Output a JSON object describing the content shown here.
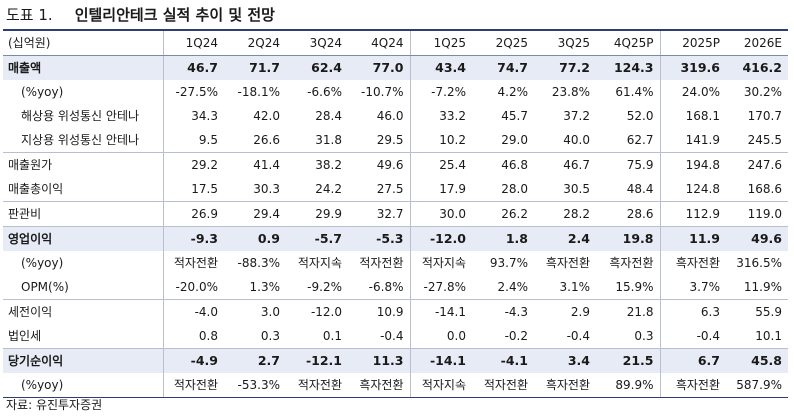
{
  "title": {
    "label": "도표 1.",
    "text": "인텔리안테크 실적 추이 및 전망"
  },
  "table": {
    "unit": "(십억원)",
    "columns": [
      "1Q24",
      "2Q24",
      "3Q24",
      "4Q24",
      "1Q25",
      "2Q25",
      "3Q25",
      "4Q25P",
      "2025P",
      "2026E"
    ],
    "rows": [
      {
        "label": "매출액",
        "style": "bold",
        "values": [
          "46.7",
          "71.7",
          "62.4",
          "77.0",
          "43.4",
          "74.7",
          "77.2",
          "124.3",
          "319.6",
          "416.2"
        ]
      },
      {
        "label": "(%yoy)",
        "style": "indent",
        "values": [
          "-27.5%",
          "-18.1%",
          "-6.6%",
          "-10.7%",
          "-7.2%",
          "4.2%",
          "23.8%",
          "61.4%",
          "24.0%",
          "30.2%"
        ]
      },
      {
        "label": "해상용 위성통신 안테나",
        "style": "indent",
        "values": [
          "34.3",
          "42.0",
          "28.4",
          "46.0",
          "33.2",
          "45.7",
          "37.2",
          "52.0",
          "168.1",
          "170.7"
        ]
      },
      {
        "label": "지상용 위성통신 안테나",
        "style": "indent",
        "values": [
          "9.5",
          "26.6",
          "31.8",
          "29.5",
          "10.2",
          "29.0",
          "40.0",
          "62.7",
          "141.9",
          "245.5"
        ]
      },
      {
        "label": "매출원가",
        "style": "group",
        "values": [
          "29.2",
          "41.4",
          "38.2",
          "49.6",
          "25.4",
          "46.8",
          "46.7",
          "75.9",
          "194.8",
          "247.6"
        ]
      },
      {
        "label": "매출총이익",
        "style": "normal",
        "values": [
          "17.5",
          "30.3",
          "24.2",
          "27.5",
          "17.9",
          "28.0",
          "30.5",
          "48.4",
          "124.8",
          "168.6"
        ]
      },
      {
        "label": "판관비",
        "style": "group",
        "values": [
          "26.9",
          "29.4",
          "29.9",
          "32.7",
          "30.0",
          "26.2",
          "28.2",
          "28.6",
          "112.9",
          "119.0"
        ]
      },
      {
        "label": "영업이익",
        "style": "bold",
        "values": [
          "-9.3",
          "0.9",
          "-5.7",
          "-5.3",
          "-12.0",
          "1.8",
          "2.4",
          "19.8",
          "11.9",
          "49.6"
        ]
      },
      {
        "label": "(%yoy)",
        "style": "indent",
        "values": [
          "적자전환",
          "-88.3%",
          "적자지속",
          "적자전환",
          "적자지속",
          "93.7%",
          "흑자전환",
          "흑자전환",
          "흑자전환",
          "316.5%"
        ]
      },
      {
        "label": "OPM(%)",
        "style": "indent",
        "values": [
          "-20.0%",
          "1.3%",
          "-9.2%",
          "-6.8%",
          "-27.8%",
          "2.4%",
          "3.1%",
          "15.9%",
          "3.7%",
          "11.9%"
        ]
      },
      {
        "label": "세전이익",
        "style": "group",
        "values": [
          "-4.0",
          "3.0",
          "-12.0",
          "10.9",
          "-14.1",
          "-4.3",
          "2.9",
          "21.8",
          "6.3",
          "55.9"
        ]
      },
      {
        "label": "법인세",
        "style": "normal",
        "values": [
          "0.8",
          "0.3",
          "0.1",
          "-0.4",
          "0.0",
          "-0.2",
          "-0.4",
          "0.3",
          "-0.4",
          "10.1"
        ]
      },
      {
        "label": "당기순이익",
        "style": "bold",
        "values": [
          "-4.9",
          "2.7",
          "-12.1",
          "11.3",
          "-14.1",
          "-4.1",
          "3.4",
          "21.5",
          "6.7",
          "45.8"
        ]
      },
      {
        "label": "(%yoy)",
        "style": "indent",
        "values": [
          "적자전환",
          "-53.3%",
          "적자전환",
          "흑자전환",
          "적자지속",
          "적자전환",
          "흑자전환",
          "89.9%",
          "흑자전환",
          "587.9%"
        ]
      }
    ]
  },
  "source": "자료: 유진투자증권"
}
